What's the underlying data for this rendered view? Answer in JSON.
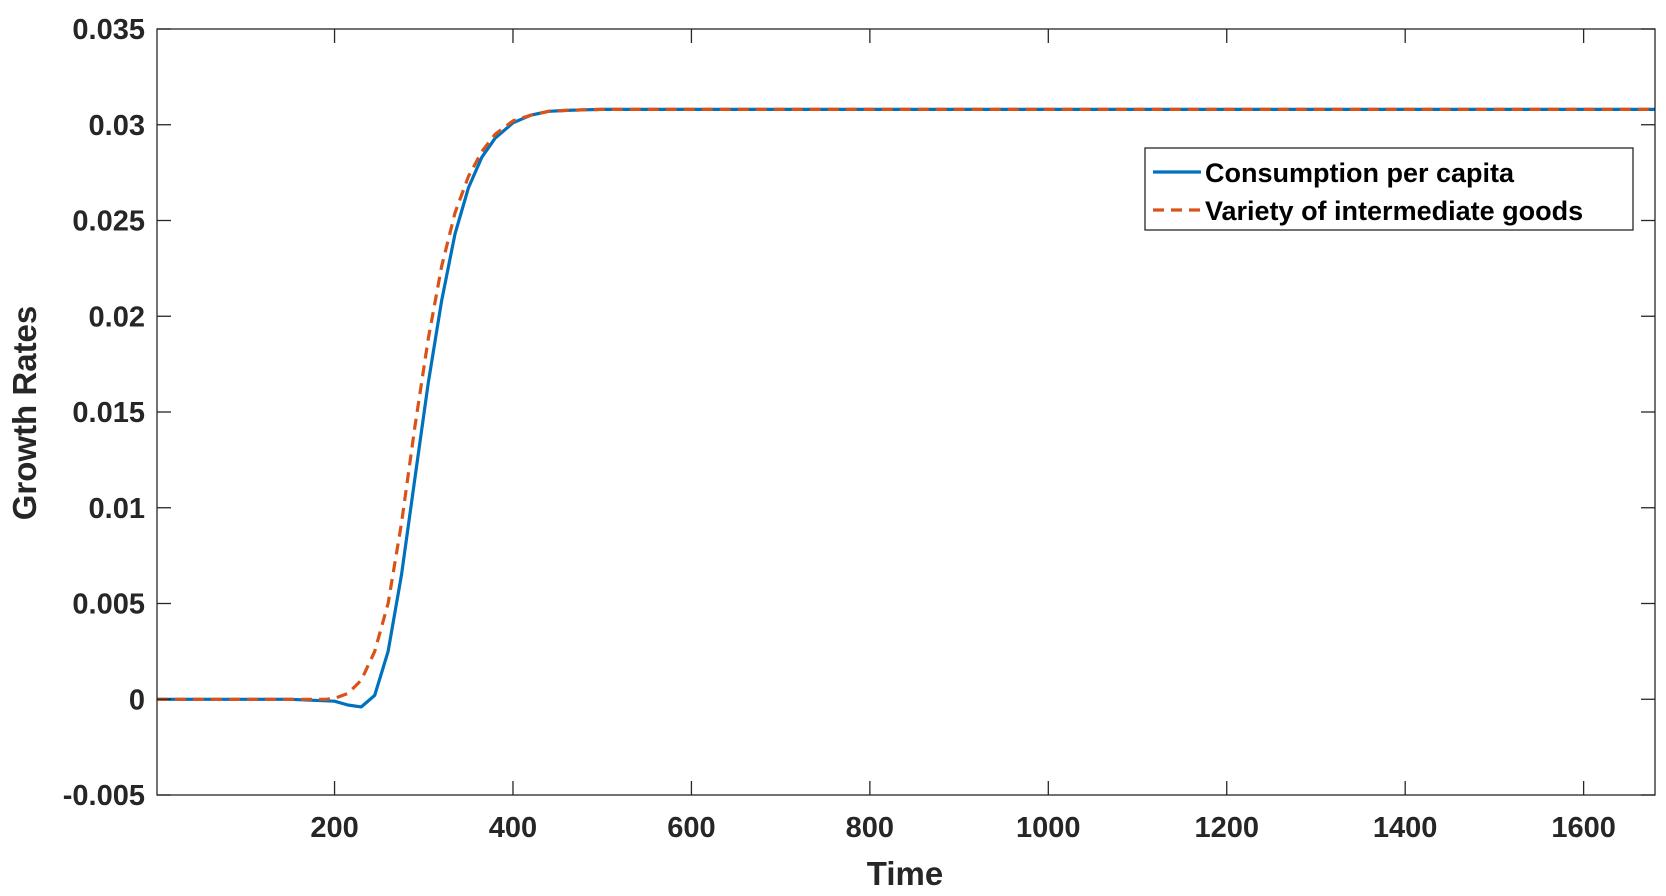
{
  "chart_data": {
    "type": "line",
    "title": "",
    "xlabel": "Time",
    "ylabel": "Growth Rates",
    "xlim": [
      1,
      1680
    ],
    "ylim": [
      -0.005,
      0.035
    ],
    "xticks": [
      200,
      400,
      600,
      800,
      1000,
      1200,
      1400,
      1600
    ],
    "xtick_labels": [
      "200",
      "400",
      "600",
      "800",
      "1000",
      "1200",
      "1400",
      "1600"
    ],
    "yticks": [
      -0.005,
      0,
      0.005,
      0.01,
      0.015,
      0.02,
      0.025,
      0.03,
      0.035
    ],
    "ytick_labels": [
      "-0.005",
      "0",
      "0.005",
      "0.01",
      "0.015",
      "0.02",
      "0.025",
      "0.03",
      "0.035"
    ],
    "grid": false,
    "legend_position": "top-right",
    "series": [
      {
        "name": "Consumption per capita",
        "color": "#0072BD",
        "style": "solid",
        "x": [
          1,
          150,
          200,
          215,
          230,
          245,
          260,
          275,
          290,
          305,
          320,
          335,
          350,
          365,
          380,
          400,
          420,
          440,
          460,
          480,
          500,
          550,
          600,
          800,
          1000,
          1200,
          1400,
          1680
        ],
        "y": [
          0,
          0,
          -0.0001,
          -0.0003,
          -0.0004,
          0.0002,
          0.0025,
          0.0065,
          0.0115,
          0.0165,
          0.0208,
          0.0243,
          0.0267,
          0.0283,
          0.0293,
          0.0301,
          0.0305,
          0.0307,
          0.03075,
          0.03078,
          0.0308,
          0.0308,
          0.0308,
          0.0308,
          0.0308,
          0.0308,
          0.0308,
          0.0308
        ]
      },
      {
        "name": "Variety of intermediate goods",
        "color": "#D95319",
        "style": "dashed",
        "x": [
          1,
          150,
          190,
          200,
          215,
          230,
          245,
          260,
          275,
          290,
          305,
          320,
          335,
          350,
          365,
          380,
          400,
          420,
          440,
          460,
          480,
          500,
          550,
          600,
          800,
          1000,
          1200,
          1400,
          1680
        ],
        "y": [
          0,
          0,
          0,
          5e-05,
          0.0003,
          0.001,
          0.0025,
          0.005,
          0.0092,
          0.0142,
          0.0188,
          0.0226,
          0.0254,
          0.0273,
          0.0286,
          0.0295,
          0.0302,
          0.0305,
          0.0307,
          0.03075,
          0.03078,
          0.0308,
          0.0308,
          0.0308,
          0.0308,
          0.0308,
          0.0308,
          0.0308,
          0.0308
        ]
      }
    ]
  }
}
